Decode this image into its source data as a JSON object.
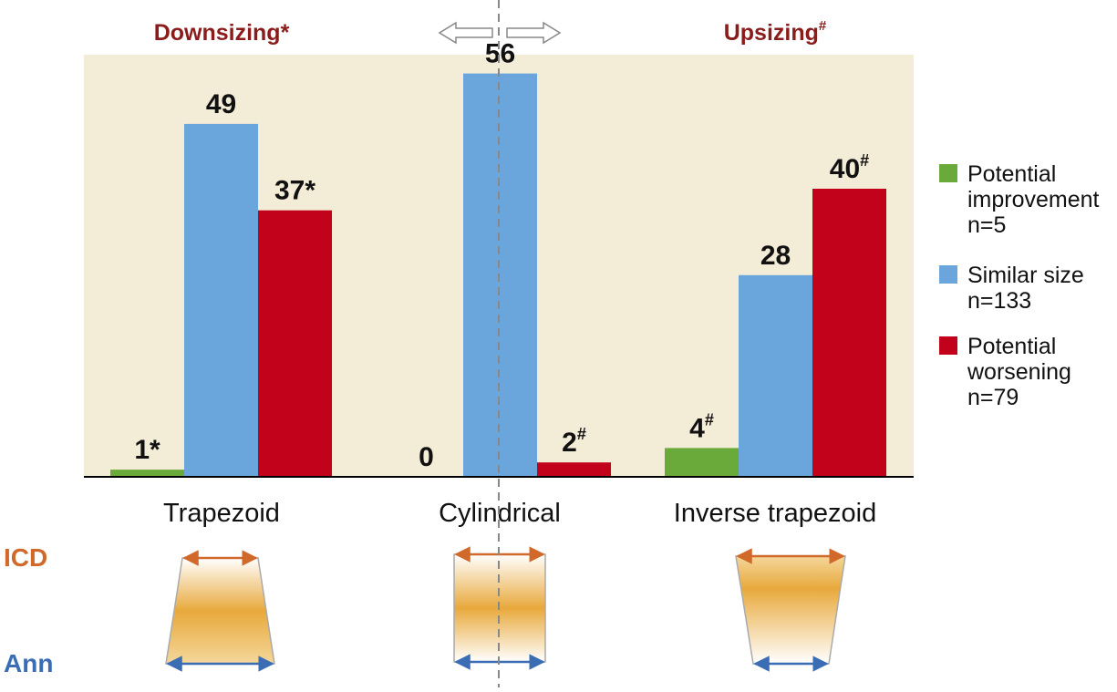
{
  "header": {
    "left_label": "Downsizing*",
    "right_label": "Upsizing#"
  },
  "colors": {
    "plot_bg": "#f3ecd6",
    "improvement": "#6aaa3a",
    "similar": "#6aa6dc",
    "worsening": "#c2021a",
    "header_text": "#8b1c1c",
    "icd_text": "#d0692a",
    "ann_text": "#3a6db4",
    "gradient_mid": "#e8a93c"
  },
  "chart_data": {
    "type": "bar",
    "categories": [
      "Trapezoid",
      "Cylindrical",
      "Inverse trapezoid"
    ],
    "series": [
      {
        "name": "Potential improvement",
        "n_label": "n=5",
        "legend_lines": [
          "Potential",
          "improvement",
          "n=5"
        ],
        "values": [
          1,
          0,
          4
        ],
        "labels": [
          "1*",
          "0",
          "4#"
        ]
      },
      {
        "name": "Similar size",
        "n_label": "n=133",
        "legend_lines": [
          "Similar size",
          "n=133"
        ],
        "values": [
          49,
          56,
          28
        ],
        "labels": [
          "49",
          "56",
          "28"
        ]
      },
      {
        "name": "Potential worsening",
        "n_label": "n=79",
        "legend_lines": [
          "Potential",
          "worsening",
          "n=79"
        ],
        "values": [
          37,
          2,
          40
        ],
        "labels": [
          "37*",
          "2#",
          "40#"
        ]
      }
    ],
    "ylim": [
      0,
      60
    ],
    "grid": false,
    "legend": "right"
  },
  "diagram": {
    "icd_label": "ICD",
    "ann_label": "Ann"
  }
}
